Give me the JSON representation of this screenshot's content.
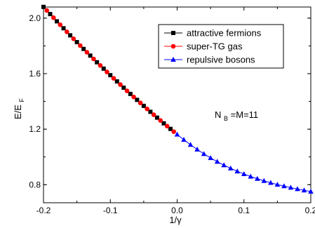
{
  "chart_data": {
    "type": "line",
    "xlabel": "1/γ",
    "ylabel": "E/E",
    "ylabel_sub": "F",
    "xlim": [
      -0.2,
      0.2
    ],
    "ylim": [
      0.67,
      2.08
    ],
    "xticks": [
      -0.2,
      -0.1,
      0.0,
      0.1,
      0.2
    ],
    "xtick_labels": [
      "-0.2",
      "-0.1",
      "0.0",
      "0.1",
      "0.2"
    ],
    "yticks": [
      0.8,
      1.2,
      1.6,
      2.0
    ],
    "ytick_labels": [
      "0.8",
      "1.2",
      "1.6",
      "2.0"
    ],
    "annotation": {
      "main": "N",
      "sub": "B",
      "rest": "=M=11"
    },
    "legend_position": "top-right",
    "series": [
      {
        "name": "attractive fermions",
        "marker": "square",
        "color": "#000000",
        "x": [
          -0.2,
          -0.19,
          -0.18,
          -0.17,
          -0.16,
          -0.15,
          -0.14,
          -0.13,
          -0.12,
          -0.11,
          -0.1,
          -0.09,
          -0.08,
          -0.07,
          -0.06,
          -0.05,
          -0.04,
          -0.03,
          -0.02,
          -0.01
        ],
        "y": [
          2.081,
          2.029,
          1.977,
          1.927,
          1.876,
          1.827,
          1.778,
          1.73,
          1.682,
          1.636,
          1.589,
          1.544,
          1.499,
          1.454,
          1.411,
          1.368,
          1.325,
          1.283,
          1.242,
          1.202
        ]
      },
      {
        "name": "super-TG gas",
        "marker": "circle",
        "color": "#ff0000",
        "x": [
          -0.195,
          -0.185,
          -0.175,
          -0.165,
          -0.155,
          -0.145,
          -0.135,
          -0.125,
          -0.115,
          -0.105,
          -0.095,
          -0.085,
          -0.075,
          -0.065,
          -0.055,
          -0.045,
          -0.035,
          -0.025,
          -0.015,
          -0.005
        ],
        "y": [
          2.055,
          2.003,
          1.952,
          1.901,
          1.851,
          1.802,
          1.754,
          1.706,
          1.659,
          1.612,
          1.566,
          1.521,
          1.476,
          1.432,
          1.389,
          1.346,
          1.304,
          1.263,
          1.222,
          1.182
        ]
      },
      {
        "name": "repulsive bosons",
        "marker": "triangle",
        "color": "#0000ff",
        "x": [
          0.0,
          0.01,
          0.02,
          0.03,
          0.04,
          0.05,
          0.06,
          0.07,
          0.08,
          0.09,
          0.1,
          0.11,
          0.12,
          0.13,
          0.14,
          0.15,
          0.16,
          0.17,
          0.18,
          0.19,
          0.2
        ],
        "y": [
          1.162,
          1.124,
          1.088,
          1.054,
          1.022,
          0.993,
          0.966,
          0.941,
          0.918,
          0.897,
          0.877,
          0.859,
          0.843,
          0.828,
          0.814,
          0.801,
          0.79,
          0.779,
          0.769,
          0.76,
          0.751
        ]
      }
    ]
  }
}
